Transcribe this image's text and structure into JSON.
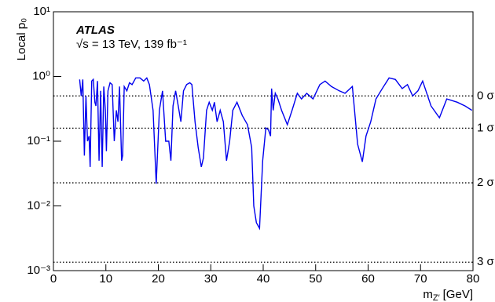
{
  "chart_data": {
    "type": "line",
    "log_y": true,
    "y_label": "Local p₀",
    "x_label": {
      "symbol": "m",
      "subscript": "Z′",
      "unit": "[GeV]"
    },
    "annotations": [
      "ATLAS",
      "√s = 13 TeV, 139 fb⁻¹"
    ],
    "xlim": [
      0,
      80
    ],
    "xticks": [
      0,
      10,
      20,
      30,
      40,
      50,
      60,
      70,
      80
    ],
    "ylim": [
      0.001,
      10
    ],
    "yticks": [
      {
        "value": 10,
        "label": "10¹"
      },
      {
        "value": 1,
        "label": "10⁰"
      },
      {
        "value": 0.1,
        "label": "10⁻¹"
      },
      {
        "value": 0.01,
        "label": "10⁻²"
      },
      {
        "value": 0.001,
        "label": "10⁻³"
      }
    ],
    "sigma_lines": [
      {
        "value": 0.5,
        "label": "0 σ"
      },
      {
        "value": 0.1587,
        "label": "1 σ"
      },
      {
        "value": 0.02275,
        "label": "2 σ"
      },
      {
        "value": 0.00135,
        "label": "3 σ"
      }
    ],
    "color": "#0000ee",
    "x": [
      5.0,
      5.3,
      5.6,
      5.9,
      6.2,
      6.5,
      6.8,
      7.0,
      7.3,
      7.6,
      7.9,
      8.1,
      8.4,
      8.7,
      9.0,
      9.3,
      9.6,
      9.9,
      10.1,
      10.4,
      10.8,
      11.2,
      11.6,
      12.0,
      12.3,
      12.6,
      13.0,
      13.2,
      13.5,
      14.0,
      14.5,
      15.0,
      15.7,
      16.5,
      17.2,
      17.8,
      18.3,
      19.0,
      19.6,
      20.2,
      20.8,
      21.4,
      22.0,
      22.4,
      22.8,
      23.3,
      23.8,
      24.3,
      24.8,
      25.4,
      26.0,
      26.4,
      27.0,
      27.6,
      28.2,
      28.6,
      29.2,
      29.7,
      30.3,
      30.7,
      31.2,
      31.8,
      32.4,
      33.0,
      33.6,
      34.2,
      35.0,
      36.0,
      37.0,
      37.8,
      38.2,
      38.7,
      39.3,
      39.9,
      40.5,
      41.0,
      41.4,
      41.6,
      41.9,
      42.3,
      42.8,
      43.5,
      44.6,
      45.5,
      46.5,
      47.3,
      48.3,
      49.5,
      50.8,
      51.8,
      53.0,
      54.5,
      55.6,
      57.0,
      58.0,
      58.9,
      59.6,
      60.5,
      61.5,
      62.7,
      64.0,
      65.2,
      66.5,
      67.5,
      68.5,
      69.5,
      70.4,
      72.0,
      73.6,
      75.0,
      77.0,
      78.5,
      79.8
    ],
    "values": [
      0.9,
      0.5,
      0.9,
      0.06,
      0.5,
      0.1,
      0.12,
      0.04,
      0.85,
      0.9,
      0.4,
      0.35,
      0.85,
      0.05,
      0.6,
      0.04,
      0.7,
      0.3,
      0.07,
      0.6,
      0.8,
      0.75,
      0.1,
      0.3,
      0.2,
      0.7,
      0.05,
      0.06,
      0.7,
      0.6,
      0.8,
      0.75,
      0.95,
      0.95,
      0.85,
      0.95,
      0.75,
      0.3,
      0.022,
      0.3,
      0.6,
      0.1,
      0.1,
      0.05,
      0.35,
      0.6,
      0.35,
      0.2,
      0.6,
      0.75,
      0.8,
      0.75,
      0.2,
      0.08,
      0.04,
      0.055,
      0.3,
      0.4,
      0.3,
      0.4,
      0.2,
      0.3,
      0.2,
      0.05,
      0.1,
      0.3,
      0.4,
      0.25,
      0.18,
      0.08,
      0.01,
      0.0055,
      0.0045,
      0.05,
      0.16,
      0.15,
      0.12,
      0.65,
      0.3,
      0.55,
      0.45,
      0.3,
      0.18,
      0.3,
      0.55,
      0.45,
      0.55,
      0.45,
      0.75,
      0.85,
      0.7,
      0.6,
      0.55,
      0.7,
      0.09,
      0.048,
      0.12,
      0.2,
      0.45,
      0.65,
      0.95,
      0.9,
      0.65,
      0.75,
      0.5,
      0.6,
      0.85,
      0.35,
      0.23,
      0.45,
      0.4,
      0.35,
      0.3
    ]
  }
}
